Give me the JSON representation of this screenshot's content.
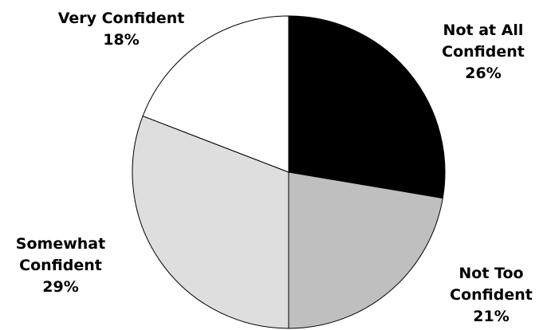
{
  "chart_data": {
    "type": "pie",
    "title": "",
    "start": "top, clockwise",
    "slices": [
      {
        "label_lines": [
          "Not at All",
          "Confident"
        ],
        "value": 26,
        "display": "26%",
        "color": "#000000"
      },
      {
        "label_lines": [
          "Not Too",
          "Confident"
        ],
        "value": 21,
        "display": "21%",
        "color": "#bfbfbf"
      },
      {
        "label_lines": [
          "Somewhat",
          "Confident"
        ],
        "value": 29,
        "display": "29%",
        "color": "#dedede"
      },
      {
        "label_lines": [
          "Very Confident"
        ],
        "value": 18,
        "display": "18%",
        "color": "#ffffff"
      }
    ]
  }
}
